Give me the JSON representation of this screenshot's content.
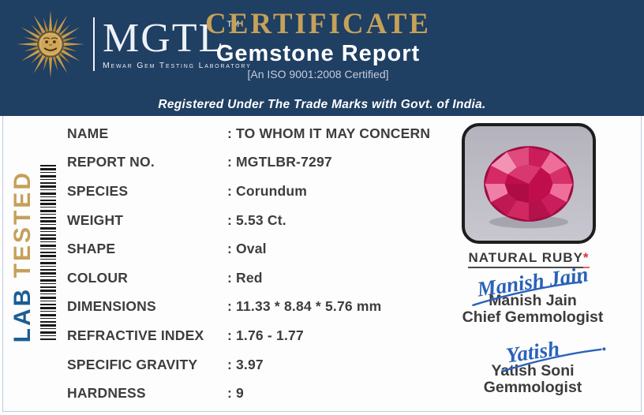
{
  "header": {
    "logo": {
      "abbr": "MGTL",
      "trademark": "TM",
      "subtitle": "Mewar Gem Testing Laboratory"
    },
    "title": "CERTIFICATE",
    "report_type": "Gemstone Report",
    "iso": "[An ISO 9001:2008 Certified]",
    "registered": "Registered Under The Trade Marks with Govt. of India."
  },
  "sidebar": {
    "lab": "LAB",
    "tested": "TESTED"
  },
  "report": {
    "colon": ":",
    "rows": [
      {
        "label": "NAME",
        "value": "TO WHOM IT MAY CONCERN"
      },
      {
        "label": "REPORT NO.",
        "value": "MGTLBR-7297"
      },
      {
        "label": "SPECIES",
        "value": "Corundum"
      },
      {
        "label": "WEIGHT",
        "value": "5.53 Ct."
      },
      {
        "label": "SHAPE",
        "value": "Oval"
      },
      {
        "label": "COLOUR",
        "value": "Red"
      },
      {
        "label": "DIMENSIONS",
        "value": "11.33 * 8.84 * 5.76  mm"
      },
      {
        "label": "REFRACTIVE INDEX",
        "value": "1.76 - 1.77"
      },
      {
        "label": "SPECIFIC GRAVITY",
        "value": "3.97"
      },
      {
        "label": "HARDNESS",
        "value": "9"
      }
    ]
  },
  "photo": {
    "caption": "NATURAL RUBY",
    "caption_asterisk": "*",
    "subject": "oval faceted ruby gemstone"
  },
  "signatories": [
    {
      "signature": "Manish Jain",
      "name": "Manish Jain",
      "title": "Chief Gemmologist"
    },
    {
      "signature": "Yatish",
      "name": "Yatish Soni",
      "title": "Gemmologist"
    }
  ],
  "colors": {
    "header_navy": "#1f3f63",
    "title_gold": "#c6a158",
    "lab_blue": "#1b5e94",
    "tested_gold": "#c5a05a",
    "signature_blue": "#2a62ba",
    "ruby_red": "#c2185b",
    "asterisk_red": "#e03131",
    "text_dark": "#3d3d3d"
  }
}
